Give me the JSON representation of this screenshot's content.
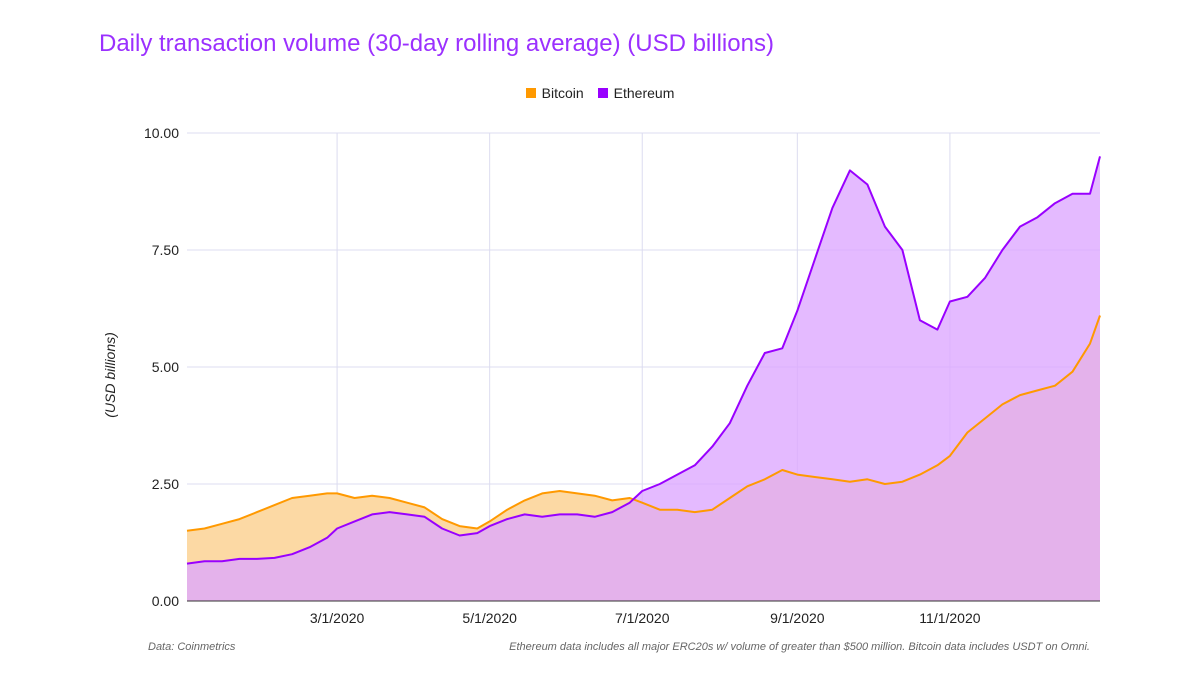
{
  "chart_data": {
    "type": "area",
    "title": "Daily transaction volume (30-day rolling average) (USD billions)",
    "xlabel": "",
    "ylabel": "(USD billions)",
    "ylim": [
      0,
      10
    ],
    "yticks": [
      "0.00",
      "2.50",
      "5.00",
      "7.50",
      "10.00"
    ],
    "xticks": [
      "3/1/2020",
      "5/1/2020",
      "7/1/2020",
      "9/1/2020",
      "11/1/2020"
    ],
    "grid": true,
    "legend_position": "top",
    "x": [
      "2020-01-01",
      "2020-01-08",
      "2020-01-15",
      "2020-01-22",
      "2020-01-29",
      "2020-02-05",
      "2020-02-12",
      "2020-02-19",
      "2020-02-26",
      "2020-03-01",
      "2020-03-08",
      "2020-03-15",
      "2020-03-22",
      "2020-03-29",
      "2020-04-05",
      "2020-04-12",
      "2020-04-19",
      "2020-04-26",
      "2020-05-01",
      "2020-05-08",
      "2020-05-15",
      "2020-05-22",
      "2020-05-29",
      "2020-06-05",
      "2020-06-12",
      "2020-06-19",
      "2020-06-26",
      "2020-07-01",
      "2020-07-08",
      "2020-07-15",
      "2020-07-22",
      "2020-07-29",
      "2020-08-05",
      "2020-08-12",
      "2020-08-19",
      "2020-08-26",
      "2020-09-01",
      "2020-09-08",
      "2020-09-15",
      "2020-09-22",
      "2020-09-29",
      "2020-10-06",
      "2020-10-13",
      "2020-10-20",
      "2020-10-27",
      "2020-11-01",
      "2020-11-08",
      "2020-11-15",
      "2020-11-22",
      "2020-11-29",
      "2020-12-06",
      "2020-12-13",
      "2020-12-20",
      "2020-12-27",
      "2020-12-31"
    ],
    "series": [
      {
        "name": "Bitcoin",
        "color": "#ff9900",
        "fill": "#fcd9a4",
        "values": [
          1.5,
          1.55,
          1.65,
          1.75,
          1.9,
          2.05,
          2.2,
          2.25,
          2.3,
          2.3,
          2.2,
          2.25,
          2.2,
          2.1,
          2.0,
          1.75,
          1.6,
          1.55,
          1.7,
          1.95,
          2.15,
          2.3,
          2.35,
          2.3,
          2.25,
          2.15,
          2.2,
          2.1,
          1.95,
          1.95,
          1.9,
          1.95,
          2.2,
          2.45,
          2.6,
          2.8,
          2.7,
          2.65,
          2.6,
          2.55,
          2.6,
          2.5,
          2.55,
          2.7,
          2.9,
          3.1,
          3.6,
          3.9,
          4.2,
          4.4,
          4.5,
          4.6,
          4.9,
          5.5,
          6.1
        ]
      },
      {
        "name": "Ethereum",
        "color": "#9900ff",
        "fill": "#dca7ff",
        "values": [
          0.8,
          0.85,
          0.85,
          0.9,
          0.9,
          0.92,
          1.0,
          1.15,
          1.35,
          1.55,
          1.7,
          1.85,
          1.9,
          1.85,
          1.8,
          1.55,
          1.4,
          1.45,
          1.6,
          1.75,
          1.85,
          1.8,
          1.85,
          1.85,
          1.8,
          1.9,
          2.1,
          2.35,
          2.5,
          2.7,
          2.9,
          3.3,
          3.8,
          4.6,
          5.3,
          5.4,
          6.2,
          7.3,
          8.4,
          9.2,
          8.9,
          8.0,
          7.5,
          6.0,
          5.8,
          6.4,
          6.5,
          6.9,
          7.5,
          8.0,
          8.2,
          8.5,
          8.7,
          8.7,
          9.5
        ]
      }
    ]
  },
  "footnotes": {
    "left": "Data: Coinmetrics",
    "right": "Ethereum data includes all major ERC20s w/ volume of greater than $500 million. Bitcoin data includes USDT on Omni."
  }
}
